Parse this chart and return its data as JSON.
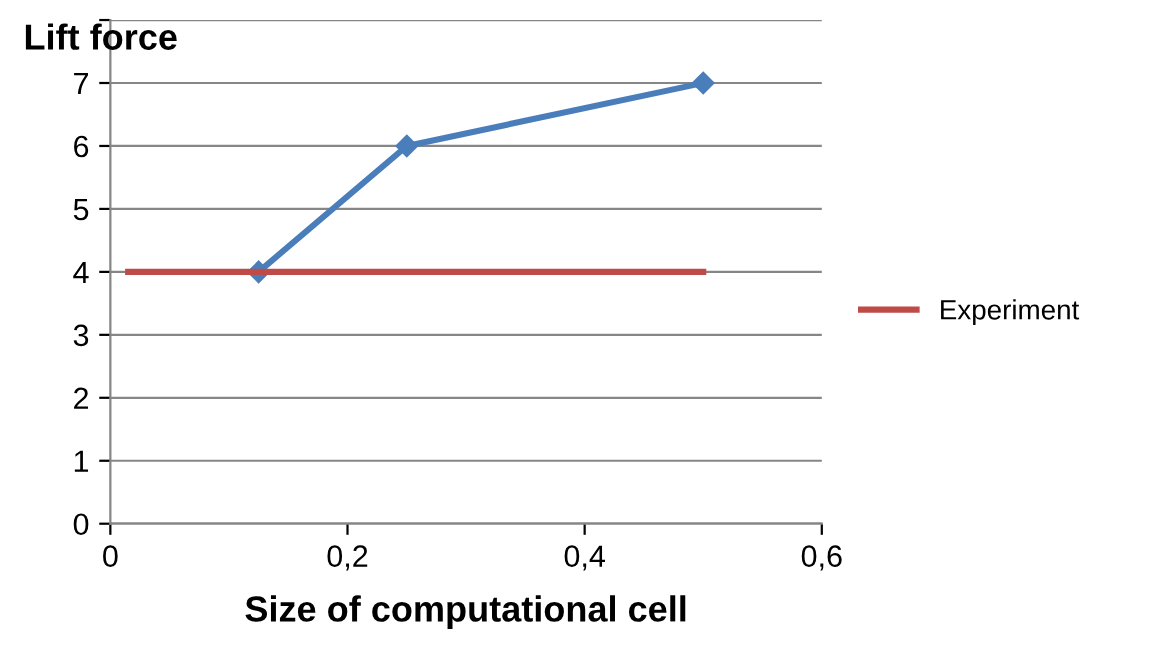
{
  "chart_data": {
    "type": "line",
    "title": "Lift force",
    "xlabel": "Size of computational cell",
    "series": [
      {
        "color": "#4a7ebb",
        "x": [
          0.125,
          0.25,
          0.5
        ],
        "values": [
          4,
          6,
          7
        ],
        "marker": "diamond"
      },
      {
        "name": "Experiment",
        "color": "#be4b48",
        "x": [
          0.015,
          0.5
        ],
        "values": [
          4,
          4
        ],
        "marker": "none"
      }
    ],
    "xlim": [
      0,
      0.6
    ],
    "xticks": [
      0,
      {
        "value": 0.2,
        "label": "0,2"
      },
      {
        "value": 0.4,
        "label": "0,4"
      },
      {
        "value": 0.6,
        "label": "0,6"
      }
    ],
    "ylim": [
      0,
      8
    ],
    "yticks": [
      0,
      1,
      2,
      3,
      4,
      5,
      6,
      7,
      {
        "value": 8,
        "label": null
      }
    ],
    "grid": "y",
    "legend": "right",
    "line_style": "solid"
  }
}
